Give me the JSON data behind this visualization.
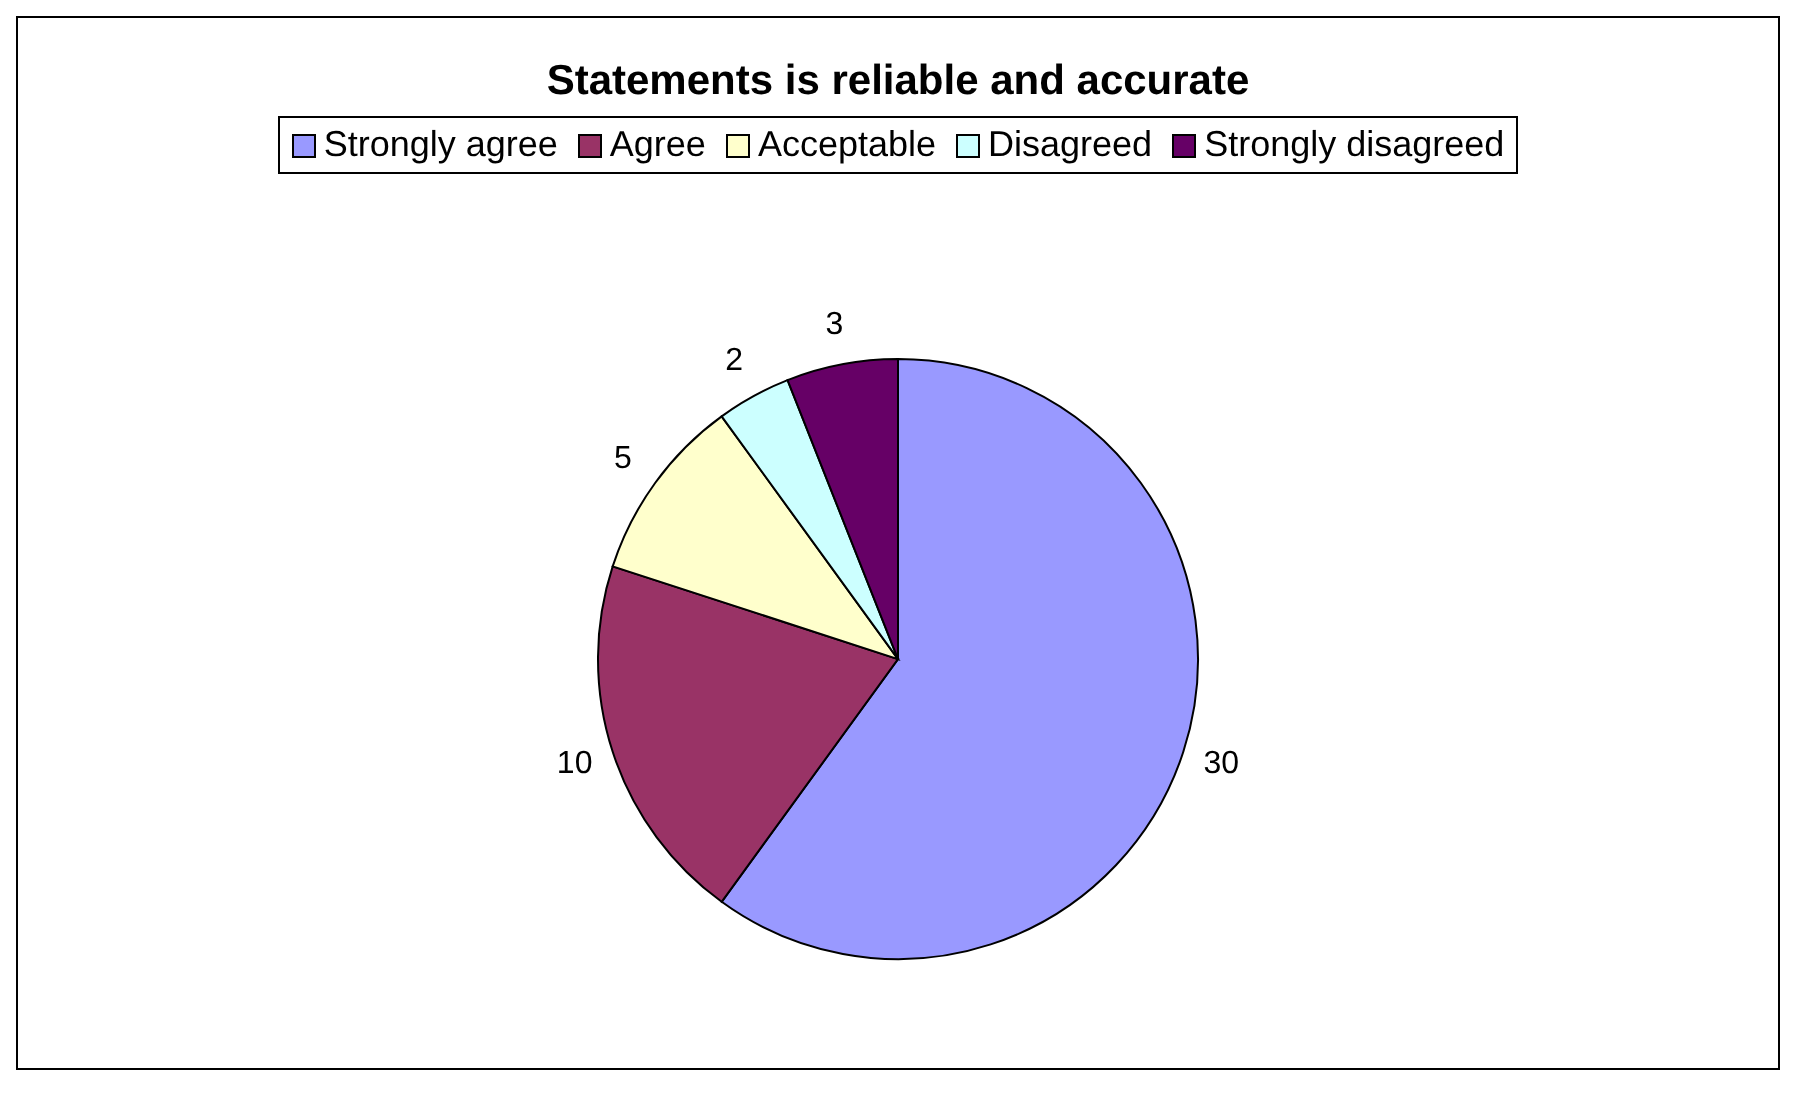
{
  "chart_data": {
    "type": "pie",
    "title": "Statements is reliable and accurate",
    "categories": [
      "Strongly agree",
      "Agree",
      "Acceptable",
      "Disagreed",
      "Strongly disagreed"
    ],
    "values": [
      30,
      10,
      5,
      2,
      3
    ],
    "colors": [
      "#9999ff",
      "#993366",
      "#ffffcc",
      "#ccffff",
      "#660066"
    ],
    "data_labels": true,
    "legend": "top"
  }
}
